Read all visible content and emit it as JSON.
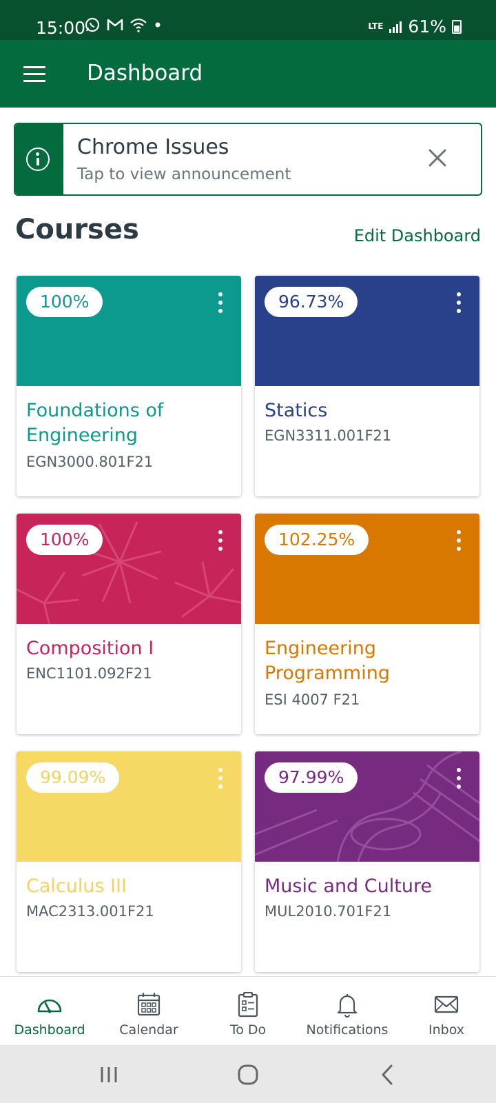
{
  "status_bar": {
    "time": "15:00",
    "network": "LTE",
    "battery": "61%",
    "icons": [
      "whatsapp-icon",
      "gmail-icon",
      "wifi-icon",
      "dot-icon",
      "lte-icon",
      "signal-icon",
      "battery-icon"
    ]
  },
  "app_bar": {
    "title": "Dashboard",
    "menu_icon": "hamburger-icon"
  },
  "announcement": {
    "title": "Chrome Issues",
    "subtitle": "Tap to view announcement",
    "icon": "info-icon",
    "dismiss_icon": "close-icon"
  },
  "courses_section": {
    "title": "Courses",
    "edit_label": "Edit Dashboard"
  },
  "courses": [
    {
      "grade": "100%",
      "name": "Foundations of Engineering",
      "code": "EGN3000.801F21",
      "color": "#0c9a8e"
    },
    {
      "grade": "96.73%",
      "name": "Statics",
      "code": "EGN3311.001F21",
      "color": "#28418a"
    },
    {
      "grade": "100%",
      "name": "Composition I",
      "code": "ENC1101.092F21",
      "color": "#c7245a",
      "image": "palm-tree-photo"
    },
    {
      "grade": "102.25%",
      "name": "Engineering Programming",
      "code": "ESI 4007 F21",
      "color": "#d87800"
    },
    {
      "grade": "99.09%",
      "name": "Calculus III",
      "code": "MAC2313.001F21",
      "color": "#f6d864"
    },
    {
      "grade": "97.99%",
      "name": "Music and Culture",
      "code": "MUL2010.701F21",
      "color": "#772b80",
      "image": "violin-photo"
    }
  ],
  "bottom_nav": {
    "items": [
      {
        "label": "Dashboard",
        "icon": "dashboard-gauge-icon",
        "active": true
      },
      {
        "label": "Calendar",
        "icon": "calendar-icon",
        "active": false
      },
      {
        "label": "To Do",
        "icon": "todo-clipboard-icon",
        "active": false
      },
      {
        "label": "Notifications",
        "icon": "bell-icon",
        "active": false
      },
      {
        "label": "Inbox",
        "icon": "envelope-icon",
        "active": false
      }
    ]
  },
  "system_nav": {
    "icons": [
      "recents-icon",
      "home-icon",
      "back-icon"
    ]
  },
  "colors": {
    "primary": "#046b3f",
    "status_bar": "#07512f",
    "text": "#2d3b45"
  }
}
